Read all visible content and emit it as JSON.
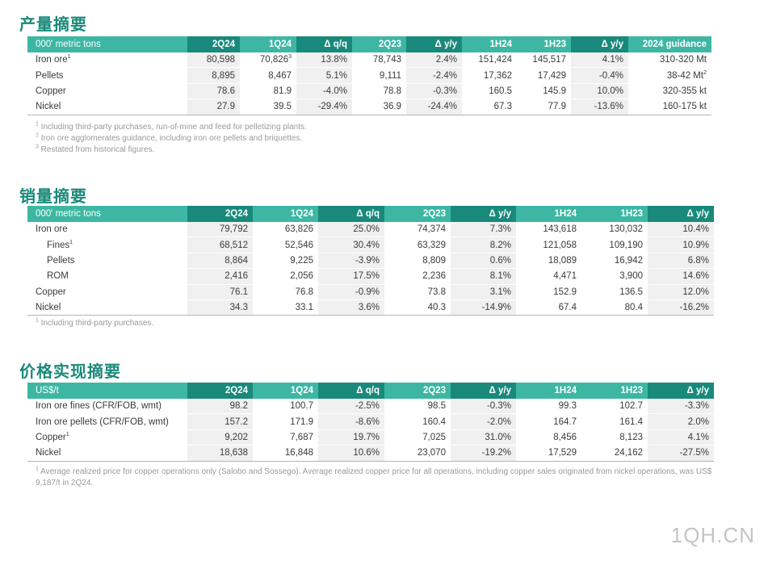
{
  "production": {
    "title": "产量摘要",
    "headers": [
      "000' metric tons",
      "2Q24",
      "1Q24",
      "Δ q/q",
      "2Q23",
      "Δ y/y",
      "1H24",
      "1H23",
      "Δ y/y",
      "2024 guidance"
    ],
    "rows": [
      {
        "label": "Iron ore",
        "label_sup": "1",
        "cells": [
          "80,598",
          "70,826",
          "13.8%",
          "78,743",
          "2.4%",
          "151,424",
          "145,517",
          "4.1%",
          "310-320 Mt"
        ],
        "sup_col": 1,
        "sup_val": "3"
      },
      {
        "label": "Pellets",
        "cells": [
          "8,895",
          "8,467",
          "5.1%",
          "9,111",
          "-2.4%",
          "17,362",
          "17,429",
          "-0.4%",
          "38-42 Mt"
        ],
        "sup_col": 8,
        "sup_val": "2"
      },
      {
        "label": "Copper",
        "cells": [
          "78.6",
          "81.9",
          "-4.0%",
          "78.8",
          "-0.3%",
          "160.5",
          "145.9",
          "10.0%",
          "320-355 kt"
        ]
      },
      {
        "label": "Nickel",
        "cells": [
          "27.9",
          "39.5",
          "-29.4%",
          "36.9",
          "-24.4%",
          "67.3",
          "77.9",
          "-13.6%",
          "160-175 kt"
        ]
      }
    ],
    "footnotes": [
      {
        "sup": "1",
        "text": "Including third-party purchases, run-of-mine and feed for pelletizing plants."
      },
      {
        "sup": "2",
        "text": "Iron ore agglomerates guidance, including iron ore pellets and briquettes."
      },
      {
        "sup": "3",
        "text": "Restated from historical figures."
      }
    ]
  },
  "sales": {
    "title": "销量摘要",
    "headers": [
      "000' metric tons",
      "2Q24",
      "1Q24",
      "Δ q/q",
      "2Q23",
      "Δ y/y",
      "1H24",
      "1H23",
      "Δ y/y"
    ],
    "rows": [
      {
        "label": "Iron ore",
        "cells": [
          "79,792",
          "63,826",
          "25.0%",
          "74,374",
          "7.3%",
          "143,618",
          "130,032",
          "10.4%"
        ]
      },
      {
        "label": "Fines",
        "label_sup": "1",
        "indent": true,
        "cells": [
          "68,512",
          "52,546",
          "30.4%",
          "63,329",
          "8.2%",
          "121,058",
          "109,190",
          "10.9%"
        ]
      },
      {
        "label": "Pellets",
        "indent": true,
        "cells": [
          "8,864",
          "9,225",
          "-3.9%",
          "8,809",
          "0.6%",
          "18,089",
          "16,942",
          "6.8%"
        ]
      },
      {
        "label": "ROM",
        "indent": true,
        "cells": [
          "2,416",
          "2,056",
          "17.5%",
          "2,236",
          "8.1%",
          "4,471",
          "3,900",
          "14.6%"
        ]
      },
      {
        "label": "Copper",
        "cells": [
          "76.1",
          "76.8",
          "-0.9%",
          "73.8",
          "3.1%",
          "152.9",
          "136.5",
          "12.0%"
        ]
      },
      {
        "label": "Nickel",
        "cells": [
          "34.3",
          "33.1",
          "3.6%",
          "40.3",
          "-14.9%",
          "67.4",
          "80.4",
          "-16.2%"
        ]
      }
    ],
    "footnotes": [
      {
        "sup": "1",
        "text": "Including third-party purchases."
      }
    ]
  },
  "prices": {
    "title": "价格实现摘要",
    "headers": [
      "US$/t",
      "2Q24",
      "1Q24",
      "Δ q/q",
      "2Q23",
      "Δ y/y",
      "1H24",
      "1H23",
      "Δ y/y"
    ],
    "rows": [
      {
        "label": "Iron ore fines (CFR/FOB, wmt)",
        "cells": [
          "98.2",
          "100.7",
          "-2.5%",
          "98.5",
          "-0.3%",
          "99.3",
          "102.7",
          "-3.3%"
        ]
      },
      {
        "label": "Iron ore pellets (CFR/FOB, wmt)",
        "cells": [
          "157.2",
          "171.9",
          "-8.6%",
          "160.4",
          "-2.0%",
          "164.7",
          "161.4",
          "2.0%"
        ]
      },
      {
        "label": "Copper",
        "label_sup": "1",
        "cells": [
          "9,202",
          "7,687",
          "19.7%",
          "7,025",
          "31.0%",
          "8,456",
          "8,123",
          "4.1%"
        ]
      },
      {
        "label": "Nickel",
        "cells": [
          "18,638",
          "16,848",
          "10.6%",
          "23,070",
          "-19.2%",
          "17,529",
          "24,162",
          "-27.5%"
        ]
      }
    ],
    "footnotes": [
      {
        "sup": "1",
        "text": "Average realized price for copper operations only (Salobo and Sossego). Average realized copper price for all operations, including copper sales originated from nickel operations, was US$ 9,187/t in 2Q24."
      }
    ]
  },
  "watermark": "1QH.CN",
  "colors": {
    "header_light": "#3db7a3",
    "header_dark": "#19897b",
    "title": "#1a8a7a",
    "row_shade": "#f0f0f0"
  }
}
